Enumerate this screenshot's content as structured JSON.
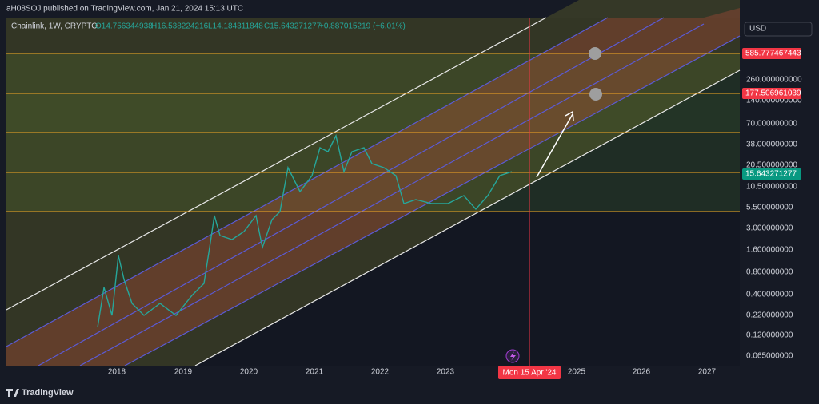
{
  "header": {
    "published": "aH08SOJ published on TradingView.com, Jan 21, 2024 15:13 UTC"
  },
  "legend": {
    "symbol": "Chainlink, 1W, CRYPTO",
    "open": "O14.756344938",
    "high": "H16.538224216",
    "low": "L14.184311848",
    "close": "C15.643271277",
    "change": "+0.887015219 (+6.01%)"
  },
  "price_axis": {
    "currency": "USD",
    "labels": [
      "260.000000000",
      "140.000000000",
      "70.000000000",
      "38.000000000",
      "20.500000000",
      "10.500000000",
      "5.500000000",
      "3.000000000",
      "1.600000000",
      "0.800000000",
      "0.400000000",
      "0.220000000",
      "0.120000000",
      "0.065000000"
    ],
    "markers": [
      "585.777467443",
      "177.506961039",
      "15.643271277"
    ]
  },
  "time_axis": {
    "labels": [
      "2018",
      "2019",
      "2020",
      "2021",
      "2022",
      "2023",
      "2025",
      "2026",
      "2027"
    ],
    "cursor": "Mon 15 Apr '24"
  },
  "footer": {
    "brand": "TradingView"
  }
}
